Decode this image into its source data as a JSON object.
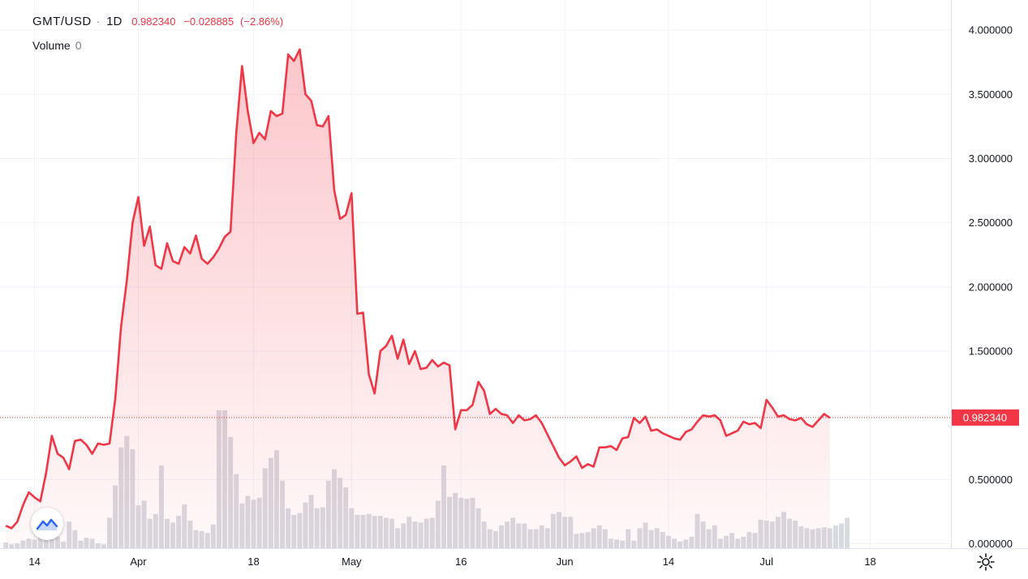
{
  "header": {
    "symbol": "GMT/USD",
    "separator": "·",
    "timeframe": "1D",
    "last": "0.982340",
    "change": "−0.028885",
    "change_pct": "(−2.86%)"
  },
  "volume": {
    "label": "Volume",
    "value": "0"
  },
  "price_badge": "0.982340",
  "colors": {
    "line": "#f23645",
    "fill": "#f23645",
    "volume": "#d1d4dc",
    "grid": "#f0f3fa",
    "text": "#131722"
  },
  "icons": {
    "logo": "tradingview-logo-icon",
    "settings": "gear-icon"
  },
  "chart_data": {
    "type": "area",
    "y_ticks": [
      "4.000000",
      "3.500000",
      "3.000000",
      "2.500000",
      "2.000000",
      "1.500000",
      "1.000000",
      "0.500000",
      "0.000000"
    ],
    "y_tick_values": [
      4,
      3.5,
      3,
      2.5,
      2,
      1.5,
      1,
      0.5,
      0
    ],
    "ylim": [
      -0.25,
      4.14
    ],
    "x_ticks": [
      "14",
      "Apr",
      "18",
      "May",
      "16",
      "Jun",
      "14",
      "Jul",
      "18"
    ],
    "x_tick_index": [
      5,
      23,
      43,
      60,
      79,
      97,
      115,
      132,
      150
    ],
    "grid": true,
    "x_range": [
      -1,
      164
    ],
    "last_value": 0.98234,
    "series": [
      {
        "values": [
          0.14,
          0.12,
          0.17,
          0.3,
          0.4,
          0.36,
          0.33,
          0.55,
          0.84,
          0.7,
          0.67,
          0.58,
          0.8,
          0.81,
          0.77,
          0.7,
          0.78,
          0.77,
          0.78,
          1.13,
          1.69,
          2.05,
          2.5,
          2.7,
          2.32,
          2.47,
          2.17,
          2.14,
          2.34,
          2.2,
          2.18,
          2.31,
          2.26,
          2.4,
          2.22,
          2.18,
          2.23,
          2.3,
          2.39,
          2.43,
          3.2,
          3.72,
          3.37,
          3.12,
          3.2,
          3.15,
          3.37,
          3.33,
          3.35,
          3.81,
          3.76,
          3.85,
          3.5,
          3.45,
          3.26,
          3.25,
          3.33,
          2.75,
          2.53,
          2.56,
          2.73,
          1.79,
          1.8,
          1.32,
          1.17,
          1.5,
          1.54,
          1.62,
          1.44,
          1.59,
          1.4,
          1.5,
          1.36,
          1.37,
          1.43,
          1.38,
          1.41,
          1.39,
          0.89,
          1.04,
          1.04,
          1.08,
          1.26,
          1.19,
          1.01,
          1.05,
          1.01,
          1.0,
          0.94,
          1.0,
          0.96,
          0.97,
          1.0,
          0.94,
          0.85,
          0.76,
          0.67,
          0.61,
          0.64,
          0.68,
          0.59,
          0.62,
          0.6,
          0.75,
          0.75,
          0.76,
          0.73,
          0.82,
          0.83,
          0.98,
          0.94,
          0.99,
          0.88,
          0.89,
          0.86,
          0.84,
          0.82,
          0.81,
          0.87,
          0.89,
          0.95,
          1.0,
          0.99,
          1.0,
          0.96,
          0.84,
          0.86,
          0.88,
          0.95,
          0.93,
          0.94,
          0.9,
          1.12,
          1.06,
          0.99,
          1.0,
          0.97,
          0.96,
          0.98,
          0.93,
          0.91,
          0.96,
          1.01,
          0.98
        ]
      },
      {
        "volume": [
          0.06,
          0.04,
          0.05,
          0.08,
          0.1,
          0.09,
          0.2,
          0.28,
          0.15,
          0.12,
          0.07,
          0.28,
          0.19,
          0.08,
          0.11,
          0.1,
          0.05,
          0.04,
          0.32,
          0.66,
          1.06,
          1.18,
          1.04,
          0.45,
          0.5,
          0.31,
          0.36,
          0.87,
          0.31,
          0.27,
          0.34,
          0.46,
          0.29,
          0.19,
          0.18,
          0.16,
          0.25,
          1.45,
          1.45,
          1.17,
          0.78,
          0.47,
          0.55,
          0.51,
          0.53,
          0.84,
          0.95,
          1.03,
          0.71,
          0.42,
          0.35,
          0.37,
          0.48,
          0.56,
          0.42,
          0.43,
          0.71,
          0.83,
          0.74,
          0.64,
          0.42,
          0.35,
          0.35,
          0.36,
          0.34,
          0.34,
          0.32,
          0.31,
          0.21,
          0.26,
          0.33,
          0.28,
          0.27,
          0.31,
          0.32,
          0.5,
          0.87,
          0.54,
          0.58,
          0.53,
          0.52,
          0.53,
          0.42,
          0.28,
          0.2,
          0.18,
          0.24,
          0.28,
          0.32,
          0.26,
          0.26,
          0.2,
          0.2,
          0.24,
          0.21,
          0.36,
          0.38,
          0.33,
          0.33,
          0.15,
          0.16,
          0.17,
          0.21,
          0.24,
          0.2,
          0.1,
          0.09,
          0.08,
          0.2,
          0.08,
          0.21,
          0.27,
          0.19,
          0.21,
          0.17,
          0.13,
          0.1,
          0.07,
          0.09,
          0.12,
          0.36,
          0.28,
          0.2,
          0.24,
          0.1,
          0.13,
          0.16,
          0.1,
          0.12,
          0.17,
          0.16,
          0.3,
          0.29,
          0.28,
          0.33,
          0.38,
          0.31,
          0.29,
          0.23,
          0.21,
          0.2,
          0.21,
          0.22,
          0.21,
          0.24,
          0.26,
          0.32
        ]
      }
    ]
  }
}
